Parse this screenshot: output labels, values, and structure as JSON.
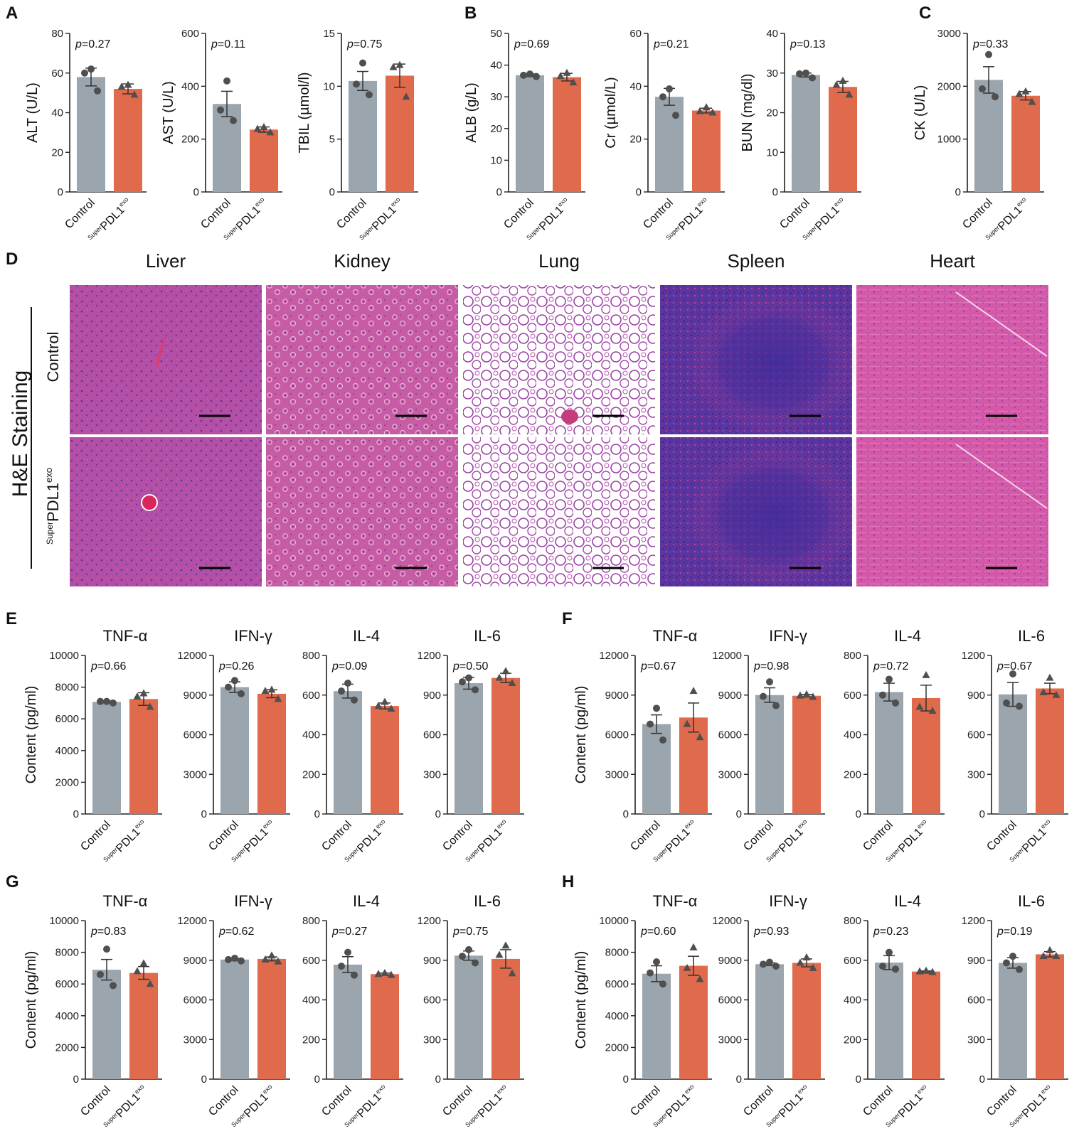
{
  "figure": {
    "panel_letters": {
      "A": "A",
      "B": "B",
      "C": "C",
      "D": "D",
      "E": "E",
      "F": "F",
      "G": "G",
      "H": "H"
    },
    "groups": [
      "Control",
      "PDL1"
    ],
    "superpdl_parts": {
      "sup": "Super",
      "main": "PDL1",
      "exp": "exo"
    },
    "he_label": "H&E Staining",
    "he_rows": [
      "Control",
      "PDL1"
    ],
    "organs": [
      "Liver",
      "Kidney",
      "Lung",
      "Spleen",
      "Heart"
    ],
    "colors": {
      "control": "#9AA5AD",
      "treated": "#E06A4C",
      "axis": "#222222",
      "point": "#4f4f4f"
    }
  },
  "he_staining": {
    "type": "histology-image-grid",
    "organs": [
      "Liver",
      "Kidney",
      "Lung",
      "Spleen",
      "Heart"
    ],
    "rows": [
      "Control",
      "PDL1"
    ],
    "tissue_colors": {
      "Liver": [
        "#b54fa8",
        "#7d3fa3"
      ],
      "Kidney": [
        "#c45aa2",
        "#8a3f9c"
      ],
      "Lung": [
        "#ffffff",
        "#8c3a9c"
      ],
      "Spleen": [
        "#6a3da8",
        "#c43a8a"
      ],
      "Heart": [
        "#d256a6",
        "#9a4aa8"
      ]
    }
  },
  "chart_data": [
    {
      "id": "ALT",
      "panel": "A",
      "type": "bar",
      "title": "",
      "ylabel": "ALT (U/L)",
      "ylim": [
        0,
        80
      ],
      "ticks": [
        0,
        20,
        40,
        60,
        80
      ],
      "categories": [
        "Control",
        "PDL1"
      ],
      "values": [
        58,
        52
      ],
      "errors": [
        4.5,
        2.5
      ],
      "points": [
        [
          62,
          60,
          51
        ],
        [
          54,
          53,
          49
        ]
      ],
      "p": "0.27"
    },
    {
      "id": "AST",
      "panel": "A",
      "type": "bar",
      "title": "",
      "ylabel": "AST (U/L)",
      "ylim": [
        0,
        600
      ],
      "ticks": [
        0,
        200,
        400,
        600
      ],
      "categories": [
        "Control",
        "PDL1"
      ],
      "values": [
        333,
        236
      ],
      "errors": [
        48,
        10
      ],
      "points": [
        [
          420,
          310,
          270
        ],
        [
          245,
          238,
          225
        ]
      ],
      "p": "0.11"
    },
    {
      "id": "TBIL",
      "panel": "A",
      "type": "bar",
      "title": "",
      "ylabel": "TBIL (µmol/l)",
      "ylim": [
        0,
        15
      ],
      "ticks": [
        0,
        5,
        10,
        15
      ],
      "categories": [
        "Control",
        "PDL1"
      ],
      "values": [
        10.5,
        11
      ],
      "errors": [
        0.9,
        1.1
      ],
      "points": [
        [
          12.2,
          10.2,
          9.2
        ],
        [
          12.0,
          11.8,
          9.0
        ]
      ],
      "p": "0.75"
    },
    {
      "id": "ALB",
      "panel": "B",
      "type": "bar",
      "title": "",
      "ylabel": "ALB (g/L)",
      "ylim": [
        0,
        50
      ],
      "ticks": [
        0,
        10,
        20,
        30,
        40,
        50
      ],
      "categories": [
        "Control",
        "PDL1"
      ],
      "values": [
        36.8,
        36.2
      ],
      "errors": [
        0.4,
        1.2
      ],
      "points": [
        [
          37.2,
          36.8,
          36.4
        ],
        [
          37.5,
          36.5,
          34.5
        ]
      ],
      "p": "0.69"
    },
    {
      "id": "Cr",
      "panel": "B",
      "type": "bar",
      "title": "",
      "ylabel": "Cr (µmol/L)",
      "ylim": [
        0,
        60
      ],
      "ticks": [
        0,
        20,
        40,
        60
      ],
      "categories": [
        "Control",
        "PDL1"
      ],
      "values": [
        36,
        30.8
      ],
      "errors": [
        3.2,
        0.9
      ],
      "points": [
        [
          39,
          36,
          29
        ],
        [
          32,
          30.5,
          30
        ]
      ],
      "p": "0.21"
    },
    {
      "id": "BUN",
      "panel": "B",
      "type": "bar",
      "title": "",
      "ylabel": "BUN (mg/dl)",
      "ylim": [
        0,
        40
      ],
      "ticks": [
        0,
        10,
        20,
        30,
        40
      ],
      "categories": [
        "Control",
        "PDL1"
      ],
      "values": [
        29.5,
        26.5
      ],
      "errors": [
        0.5,
        1.4
      ],
      "points": [
        [
          30,
          29.8,
          28.8
        ],
        [
          28,
          27,
          24.5
        ]
      ],
      "p": "0.13"
    },
    {
      "id": "CK",
      "panel": "C",
      "type": "bar",
      "title": "",
      "ylabel": "CK (U/L)",
      "ylim": [
        0,
        3000
      ],
      "ticks": [
        0,
        1000,
        2000,
        3000
      ],
      "categories": [
        "Control",
        "PDL1"
      ],
      "values": [
        2120,
        1820
      ],
      "errors": [
        250,
        80
      ],
      "points": [
        [
          2600,
          1950,
          1800
        ],
        [
          1900,
          1850,
          1700
        ]
      ],
      "p": "0.33"
    },
    {
      "id": "E-TNF",
      "panel": "E",
      "type": "bar",
      "title": "TNF-α",
      "ylabel": "Content (pg/ml)",
      "ylim": [
        0,
        10000
      ],
      "ticks": [
        0,
        2000,
        4000,
        6000,
        8000,
        10000
      ],
      "categories": [
        "Control",
        "PDL1"
      ],
      "values": [
        7070,
        7250
      ],
      "errors": [
        60,
        400
      ],
      "points": [
        [
          7100,
          7100,
          7000
        ],
        [
          7600,
          7400,
          6750
        ]
      ],
      "p": "0.66"
    },
    {
      "id": "E-IFN",
      "panel": "E",
      "type": "bar",
      "title": "IFN-γ",
      "ylabel": "",
      "ylim": [
        0,
        12000
      ],
      "ticks": [
        0,
        3000,
        6000,
        9000,
        12000
      ],
      "categories": [
        "Control",
        "PDL1"
      ],
      "values": [
        9600,
        9100
      ],
      "errors": [
        400,
        300
      ],
      "points": [
        [
          10100,
          9600,
          9100
        ],
        [
          9400,
          9300,
          8700
        ]
      ],
      "p": "0.26"
    },
    {
      "id": "E-IL4",
      "panel": "E",
      "type": "bar",
      "title": "IL-4",
      "ylabel": "",
      "ylim": [
        0,
        800
      ],
      "ticks": [
        0,
        200,
        400,
        600,
        800
      ],
      "categories": [
        "Control",
        "PDL1"
      ],
      "values": [
        620,
        545
      ],
      "errors": [
        35,
        15
      ],
      "points": [
        [
          660,
          620,
          575
        ],
        [
          565,
          545,
          530
        ]
      ],
      "p": "0.09"
    },
    {
      "id": "E-IL6",
      "panel": "E",
      "type": "bar",
      "title": "IL-6",
      "ylabel": "",
      "ylim": [
        0,
        1200
      ],
      "ticks": [
        0,
        300,
        600,
        900,
        1200
      ],
      "categories": [
        "Control",
        "PDL1"
      ],
      "values": [
        990,
        1030
      ],
      "errors": [
        45,
        35
      ],
      "points": [
        [
          1030,
          1000,
          940
        ],
        [
          1080,
          1030,
          990
        ]
      ],
      "p": "0.50"
    },
    {
      "id": "F-TNF",
      "panel": "F",
      "type": "bar",
      "title": "TNF-α",
      "ylabel": "Content (pg/ml)",
      "ylim": [
        0,
        12000
      ],
      "ticks": [
        0,
        3000,
        6000,
        9000,
        12000
      ],
      "categories": [
        "Control",
        "PDL1"
      ],
      "values": [
        6800,
        7300
      ],
      "errors": [
        700,
        1100
      ],
      "points": [
        [
          8000,
          6800,
          5600
        ],
        [
          9300,
          6800,
          5800
        ]
      ],
      "p": "0.67"
    },
    {
      "id": "F-IFN",
      "panel": "F",
      "type": "bar",
      "title": "IFN-γ",
      "ylabel": "",
      "ylim": [
        0,
        12000
      ],
      "ticks": [
        0,
        3000,
        6000,
        9000,
        12000
      ],
      "categories": [
        "Control",
        "PDL1"
      ],
      "values": [
        9000,
        8950
      ],
      "errors": [
        550,
        100
      ],
      "points": [
        [
          10000,
          8900,
          8200
        ],
        [
          9050,
          8950,
          8850
        ]
      ],
      "p": "0.98"
    },
    {
      "id": "F-IL4",
      "panel": "F",
      "type": "bar",
      "title": "IL-4",
      "ylabel": "",
      "ylim": [
        0,
        800
      ],
      "ticks": [
        0,
        200,
        400,
        600,
        800
      ],
      "categories": [
        "Control",
        "PDL1"
      ],
      "values": [
        615,
        585
      ],
      "errors": [
        45,
        65
      ],
      "points": [
        [
          680,
          600,
          560
        ],
        [
          700,
          540,
          520
        ]
      ],
      "p": "0.72"
    },
    {
      "id": "F-IL6",
      "panel": "F",
      "type": "bar",
      "title": "IL-6",
      "ylabel": "",
      "ylim": [
        0,
        1200
      ],
      "ticks": [
        0,
        300,
        600,
        900,
        1200
      ],
      "categories": [
        "Control",
        "PDL1"
      ],
      "values": [
        905,
        950
      ],
      "errors": [
        90,
        40
      ],
      "points": [
        [
          1060,
          840,
          815
        ],
        [
          1030,
          920,
          900
        ]
      ],
      "p": "0.67"
    },
    {
      "id": "G-TNF",
      "panel": "G",
      "type": "bar",
      "title": "TNF-α",
      "ylabel": "Content (pg/ml)",
      "ylim": [
        0,
        10000
      ],
      "ticks": [
        0,
        2000,
        4000,
        6000,
        8000,
        10000
      ],
      "categories": [
        "Control",
        "PDL1"
      ],
      "values": [
        6900,
        6700
      ],
      "errors": [
        650,
        400
      ],
      "points": [
        [
          8200,
          6600,
          5900
        ],
        [
          7300,
          6800,
          6000
        ]
      ],
      "p": "0.83"
    },
    {
      "id": "G-IFN",
      "panel": "G",
      "type": "bar",
      "title": "IFN-γ",
      "ylabel": "",
      "ylim": [
        0,
        12000
      ],
      "ticks": [
        0,
        3000,
        6000,
        9000,
        12000
      ],
      "categories": [
        "Control",
        "PDL1"
      ],
      "values": [
        9050,
        9100
      ],
      "errors": [
        80,
        150
      ],
      "points": [
        [
          9150,
          9050,
          8950
        ],
        [
          9350,
          9050,
          8900
        ]
      ],
      "p": "0.62"
    },
    {
      "id": "G-IL4",
      "panel": "G",
      "type": "bar",
      "title": "IL-4",
      "ylabel": "",
      "ylim": [
        0,
        800
      ],
      "ticks": [
        0,
        200,
        400,
        600,
        800
      ],
      "categories": [
        "Control",
        "PDL1"
      ],
      "values": [
        578,
        530
      ],
      "errors": [
        40,
        5
      ],
      "points": [
        [
          640,
          570,
          525
        ],
        [
          535,
          530,
          525
        ]
      ],
      "p": "0.27"
    },
    {
      "id": "G-IL6",
      "panel": "G",
      "type": "bar",
      "title": "IL-6",
      "ylabel": "",
      "ylim": [
        0,
        1200
      ],
      "ticks": [
        0,
        300,
        600,
        900,
        1200
      ],
      "categories": [
        "Control",
        "PDL1"
      ],
      "values": [
        935,
        910
      ],
      "errors": [
        35,
        70
      ],
      "points": [
        [
          980,
          930,
          880
        ],
        [
          1010,
          940,
          800
        ]
      ],
      "p": "0.75"
    },
    {
      "id": "H-TNF",
      "panel": "H",
      "type": "bar",
      "title": "TNF-α",
      "ylabel": "Content (pg/ml)",
      "ylim": [
        0,
        10000
      ],
      "ticks": [
        0,
        2000,
        4000,
        6000,
        8000,
        10000
      ],
      "categories": [
        "Control",
        "PDL1"
      ],
      "values": [
        6650,
        7150
      ],
      "errors": [
        500,
        600
      ],
      "points": [
        [
          7400,
          6700,
          6000
        ],
        [
          8300,
          7000,
          6300
        ]
      ],
      "p": "0.60"
    },
    {
      "id": "H-IFN",
      "panel": "H",
      "type": "bar",
      "title": "IFN-γ",
      "ylabel": "",
      "ylim": [
        0,
        12000
      ],
      "ticks": [
        0,
        3000,
        6000,
        9000,
        12000
      ],
      "categories": [
        "Control",
        "PDL1"
      ],
      "values": [
        8700,
        8800
      ],
      "errors": [
        100,
        300
      ],
      "points": [
        [
          8850,
          8700,
          8550
        ],
        [
          9200,
          8800,
          8400
        ]
      ],
      "p": "0.93"
    },
    {
      "id": "H-IL4",
      "panel": "H",
      "type": "bar",
      "title": "IL-4",
      "ylabel": "",
      "ylim": [
        0,
        800
      ],
      "ticks": [
        0,
        200,
        400,
        600,
        800
      ],
      "categories": [
        "Control",
        "PDL1"
      ],
      "values": [
        588,
        543
      ],
      "errors": [
        35,
        3
      ],
      "points": [
        [
          640,
          570,
          555
        ],
        [
          546,
          543,
          540
        ]
      ],
      "p": "0.23"
    },
    {
      "id": "H-IL6",
      "panel": "H",
      "type": "bar",
      "title": "IL-6",
      "ylabel": "",
      "ylim": [
        0,
        1200
      ],
      "ticks": [
        0,
        300,
        600,
        900,
        1200
      ],
      "categories": [
        "Control",
        "PDL1"
      ],
      "values": [
        880,
        945
      ],
      "errors": [
        40,
        20
      ],
      "points": [
        [
          930,
          880,
          830
        ],
        [
          975,
          930,
          930
        ]
      ],
      "p": "0.19"
    }
  ]
}
